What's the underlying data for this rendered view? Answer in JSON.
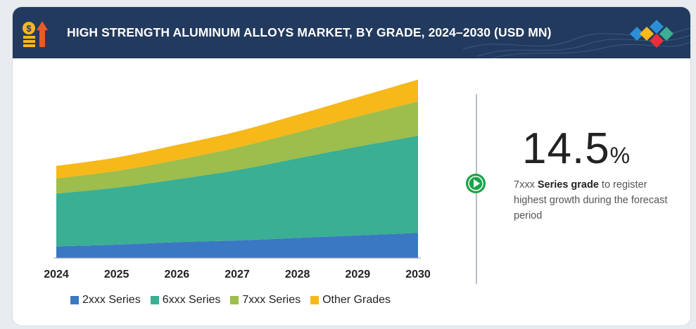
{
  "header": {
    "title": "HIGH STRENGTH ALUMINUM ALLOYS MARKET, BY GRADE, 2024–2030 (USD MN)"
  },
  "stat": {
    "value": "14.5",
    "unit": "%",
    "desc_prefix": "7xxx ",
    "desc_bold": "Series grade",
    "desc_suffix": " to register highest growth during the forecast period"
  },
  "colors": {
    "header_bg": "#223a5e",
    "accent_green": "#1aa34a"
  },
  "chart_data": {
    "type": "area",
    "stacked": true,
    "x": [
      "2024",
      "2025",
      "2026",
      "2027",
      "2028",
      "2029",
      "2030"
    ],
    "series": [
      {
        "name": "2xxx Series",
        "color": "#3a78c3",
        "values": [
          14,
          16,
          19,
          21,
          24,
          27,
          30
        ]
      },
      {
        "name": "6xxx Series",
        "color": "#3aaf93",
        "values": [
          63,
          68,
          75,
          84,
          95,
          106,
          116
        ]
      },
      {
        "name": "7xxx Series",
        "color": "#9dbd4c",
        "values": [
          18,
          20,
          23,
          27,
          31,
          36,
          41
        ]
      },
      {
        "name": "Other Grades",
        "color": "#f7b81a",
        "values": [
          15,
          16,
          18,
          19,
          21,
          23,
          26
        ]
      }
    ],
    "ylim": [
      0,
      230
    ],
    "xlabel": "",
    "ylabel": "",
    "grid": false,
    "legend_position": "bottom"
  }
}
